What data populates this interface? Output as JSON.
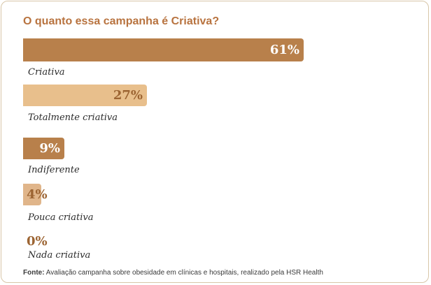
{
  "chart_data": {
    "type": "bar",
    "orientation": "horizontal",
    "title": "O quanto essa campanha é Criativa?",
    "categories": [
      "Criativa",
      "Totalmente criativa",
      "Indiferente",
      "Pouca criativa",
      "Nada criativa"
    ],
    "values": [
      61,
      27,
      9,
      4,
      0
    ],
    "value_labels": [
      "61%",
      "27%",
      "9%",
      "4%",
      "0%"
    ],
    "bar_colors": [
      "#b8804b",
      "#e8bf8c",
      "#b8804b",
      "#e0b58a",
      "#b8804b"
    ],
    "value_label_colors": [
      "#ffffff",
      "#9c6432",
      "#ffffff",
      "#9c6432",
      "#9c6432"
    ],
    "xlim": [
      0,
      61
    ],
    "grid": false,
    "legend": "none"
  },
  "source": {
    "label": "Fonte:",
    "text": " Avaliação campanha sobre obesidade em clínicas e hospitais,  realizado pela HSR Health"
  }
}
